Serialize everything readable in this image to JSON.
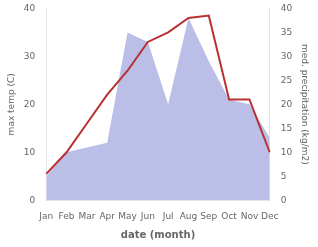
{
  "chart_data": {
    "type": "line",
    "categories": [
      "Jan",
      "Feb",
      "Mar",
      "Apr",
      "May",
      "Jun",
      "Jul",
      "Aug",
      "Sep",
      "Oct",
      "Nov",
      "Dec"
    ],
    "series": [
      {
        "type": "area",
        "color": "#bbbfe8",
        "axis": "y2",
        "values": [
          5,
          10,
          11,
          12,
          35,
          33,
          20,
          38,
          29,
          21,
          20,
          13
        ]
      },
      {
        "type": "line",
        "color": "#b83030",
        "values": [
          5.5,
          10,
          16,
          22,
          27,
          33,
          35,
          38,
          38.5,
          21,
          21,
          10
        ]
      }
    ],
    "xlabel": "date (month)",
    "ylabel": "max temp (C)",
    "y2label": "med. precipitation (kg/m2)",
    "ylim": [
      0,
      40
    ],
    "yticks": [
      0,
      10,
      20,
      30,
      40
    ],
    "y2lim": [
      0,
      40
    ],
    "y2ticks": [
      0,
      5,
      10,
      15,
      20,
      25,
      30,
      35,
      40
    ],
    "grid": false
  }
}
